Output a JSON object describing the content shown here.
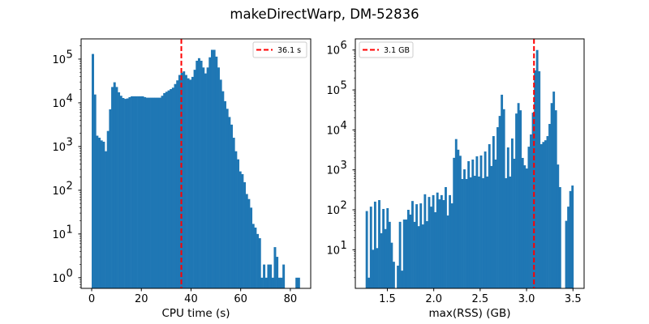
{
  "title": "makeDirectWarp, DM-52836",
  "colors": {
    "bars": "#1f77b4",
    "marker_line": "#ff0000"
  },
  "chart_data": [
    {
      "type": "bar",
      "subtype": "histogram",
      "xlabel": "CPU time (s)",
      "ylabel": "",
      "xlim": [
        -4.25,
        88.2
      ],
      "ylim": [
        0.57,
        290000
      ],
      "yscale": "log",
      "xticks": [
        0,
        20,
        40,
        60,
        80
      ],
      "yticks_exponents": [
        0,
        1,
        2,
        3,
        4,
        5
      ],
      "bin_range": [
        0.0,
        83.8
      ],
      "counts": [
        131000,
        15500,
        1770,
        1590,
        1380,
        1290,
        780,
        2270,
        7100,
        23000,
        29500,
        23000,
        17400,
        14500,
        12900,
        12300,
        12600,
        13500,
        14100,
        14100,
        14100,
        14100,
        14100,
        14100,
        13500,
        13100,
        13100,
        13100,
        13100,
        13100,
        13100,
        13100,
        14500,
        16700,
        17900,
        19200,
        20600,
        22200,
        26900,
        32600,
        43300,
        48700,
        52400,
        43300,
        36400,
        33800,
        39200,
        57000,
        91700,
        105000,
        91700,
        64300,
        47000,
        64300,
        110000,
        163000,
        163000,
        114000,
        64300,
        33800,
        18400,
        10900,
        7300,
        4740,
        3170,
        1590,
        780,
        510,
        270,
        234,
        153,
        82,
        63,
        40,
        17,
        14,
        10,
        8,
        1,
        2,
        1,
        2,
        2,
        1,
        5,
        3,
        1,
        1,
        2,
        0,
        0,
        0,
        0,
        0,
        1,
        1
      ],
      "vline": {
        "x": 36.1,
        "label": "36.1 s",
        "style": "dashed"
      },
      "legend_position": "top-right",
      "grid": false
    },
    {
      "type": "bar",
      "subtype": "histogram",
      "xlabel": "max(RSS) (GB)",
      "ylabel": "",
      "xlim": [
        1.155,
        3.62
      ],
      "ylim": [
        1.08,
        1900000
      ],
      "yscale": "log",
      "xticks": [
        1.5,
        2.0,
        2.5,
        3.0,
        3.5
      ],
      "xtick_labels": [
        "1.5",
        "2.0",
        "2.5",
        "3.0",
        "3.5"
      ],
      "yticks_exponents": [
        1,
        2,
        3,
        4,
        5,
        6
      ],
      "bin_range": [
        1.266,
        3.505
      ],
      "counts": [
        93,
        2,
        120,
        10,
        160,
        11,
        175,
        26,
        105,
        33,
        110,
        50,
        15,
        5,
        0,
        4,
        50,
        3,
        57,
        57,
        100,
        76,
        166,
        50,
        138,
        39,
        145,
        43,
        245,
        52,
        210,
        120,
        233,
        87,
        270,
        183,
        233,
        175,
        370,
        72,
        233,
        145,
        2000,
        5900,
        3200,
        2250,
        590,
        1030,
        590,
        1650,
        650,
        1810,
        710,
        2180,
        680,
        2290,
        620,
        2880,
        680,
        4400,
        1250,
        7000,
        1810,
        11700,
        22400,
        76000,
        33000,
        620,
        3640,
        680,
        6100,
        1900,
        25700,
        47000,
        31000,
        1990,
        1300,
        1080,
        3800,
        7700,
        27000,
        309000,
        1000000,
        295000,
        4400,
        5000,
        5500,
        7000,
        14100,
        47000,
        91000,
        31000,
        1360,
        370,
        0,
        0,
        53,
        120,
        295,
        405
      ],
      "vline": {
        "x": 3.08,
        "label": "3.1 GB",
        "style": "dashed"
      },
      "legend_position": "top-left",
      "grid": false
    }
  ]
}
